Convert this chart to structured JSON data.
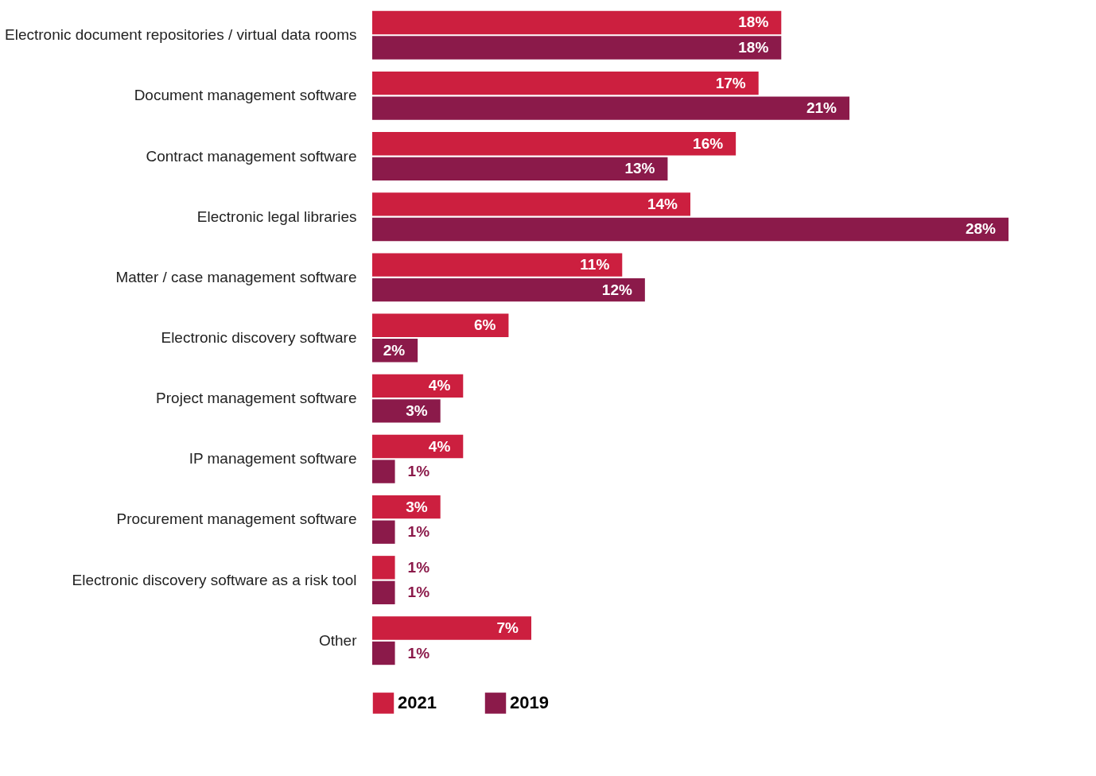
{
  "chart_data": {
    "type": "bar",
    "orientation": "horizontal",
    "legend": "bottom",
    "categories": [
      "Electronic document repositories / virtual data rooms",
      "Document management software",
      "Contract management software",
      "Electronic legal libraries",
      "Matter / case management software",
      "Electronic discovery software",
      "Project management software",
      "IP management software",
      "Procurement management software",
      "Electronic discovery software as a risk tool",
      "Other"
    ],
    "series": [
      {
        "name": "2021",
        "color": "#cc1f3f",
        "values": [
          18,
          17,
          16,
          14,
          11,
          6,
          4,
          4,
          3,
          1,
          7
        ],
        "value_labels": [
          "18%",
          "17%",
          "16%",
          "14%",
          "11%",
          "6%",
          "4%",
          "4%",
          "3%",
          "1%",
          "7%"
        ]
      },
      {
        "name": "2019",
        "color": "#8b1a4a",
        "values": [
          18,
          21,
          13,
          28,
          12,
          2,
          3,
          1,
          1,
          1,
          1
        ],
        "value_labels": [
          "18%",
          "21%",
          "13%",
          "28%",
          "12%",
          "2%",
          "3%",
          "1%",
          "1%",
          "1%",
          "1%"
        ]
      }
    ]
  }
}
